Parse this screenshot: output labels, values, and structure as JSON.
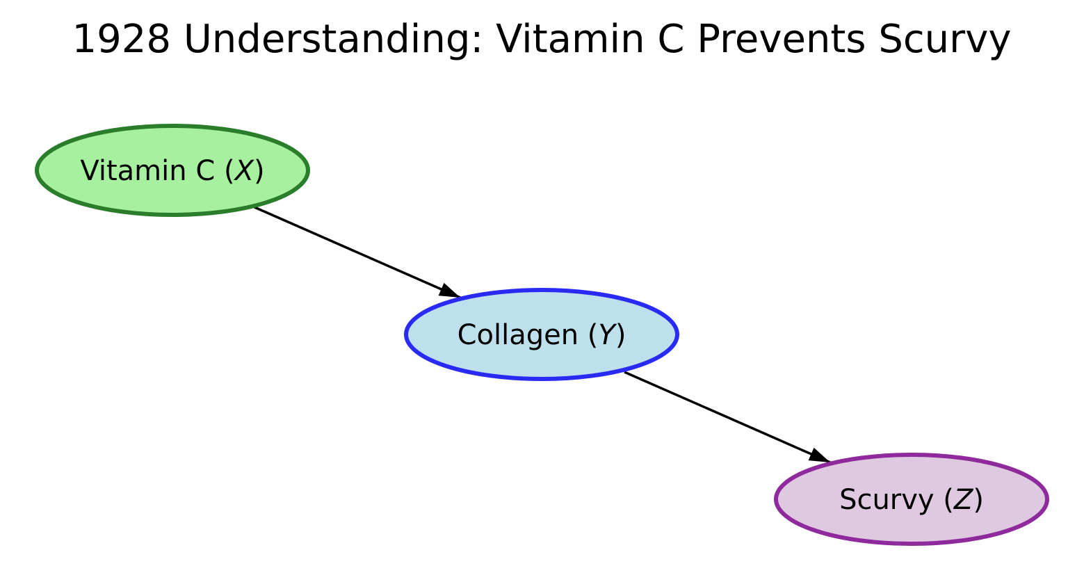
{
  "title": "1928 Understanding: Vitamin C Prevents Scurvy",
  "nodes": {
    "vitamin_c": {
      "name": "Vitamin C",
      "variable": "X",
      "fill": "#a6f0a0",
      "stroke": "#2a7d2a"
    },
    "collagen": {
      "name": "Collagen",
      "variable": "Y",
      "fill": "#bde0ec",
      "stroke": "#2a2af5"
    },
    "scurvy": {
      "name": "Scurvy",
      "variable": "Z",
      "fill": "#dfc9e0",
      "stroke": "#8f2a9c"
    }
  },
  "edges": [
    {
      "from": "Vitamin C",
      "to": "Collagen"
    },
    {
      "from": "Collagen",
      "to": "Scurvy"
    }
  ],
  "colors": {
    "edge": "#000000",
    "background": "#ffffff"
  }
}
